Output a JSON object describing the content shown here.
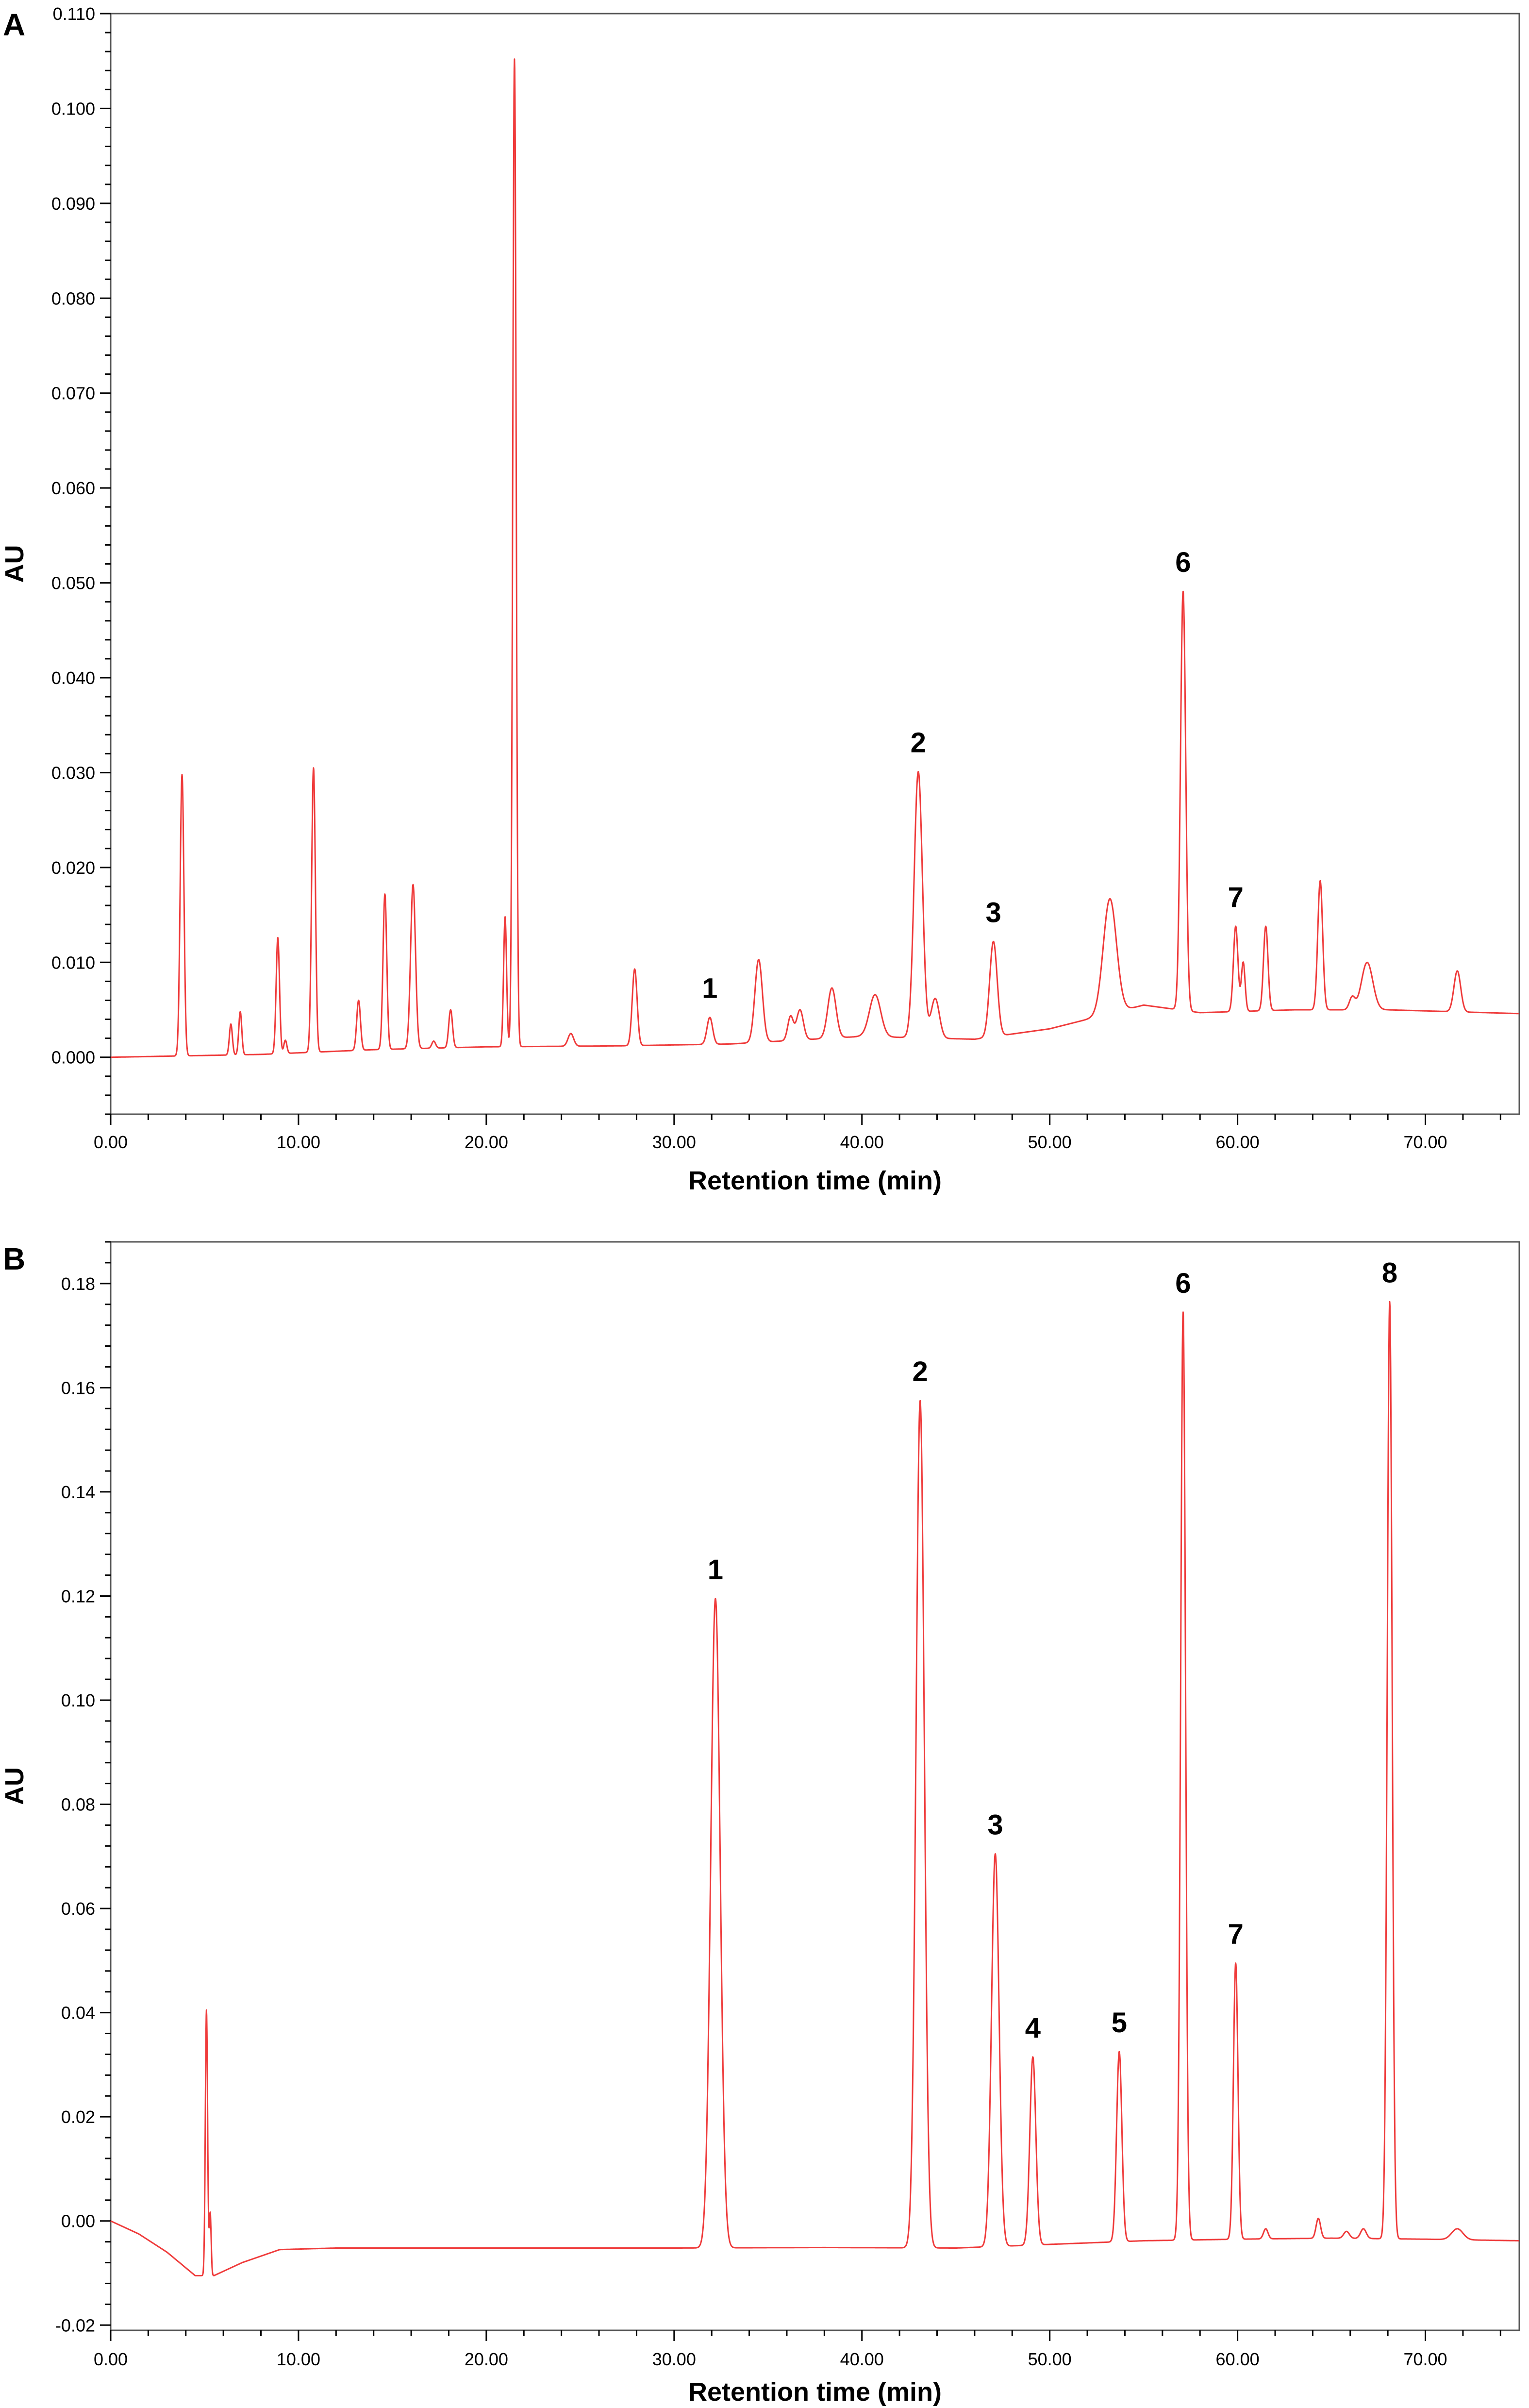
{
  "chart_data": [
    {
      "panel": "A",
      "type": "line",
      "xlabel": "Retention time (min)",
      "ylabel": "AU",
      "xlim": [
        0,
        75
      ],
      "ylim": [
        -0.006,
        0.11
      ],
      "xticks": [
        0,
        10,
        20,
        30,
        40,
        50,
        60,
        70
      ],
      "xtick_labels": [
        "0.00",
        "10.00",
        "20.00",
        "30.00",
        "40.00",
        "50.00",
        "60.00",
        "70.00"
      ],
      "yticks": [
        0,
        0.01,
        0.02,
        0.03,
        0.04,
        0.05,
        0.06,
        0.07,
        0.08,
        0.09,
        0.1,
        0.11
      ],
      "ytick_labels": [
        "0.000",
        "0.010",
        "0.020",
        "0.030",
        "0.040",
        "0.050",
        "0.060",
        "0.070",
        "0.080",
        "0.090",
        "0.100",
        "0.110"
      ],
      "grid": false,
      "line_color": "#ef3b3b",
      "baseline": [
        [
          0,
          0
        ],
        [
          8,
          0.0003
        ],
        [
          14,
          0.0008
        ],
        [
          20,
          0.0011
        ],
        [
          27,
          0.0012
        ],
        [
          33,
          0.0014
        ],
        [
          40,
          0.0022
        ],
        [
          46,
          0.0019
        ],
        [
          50,
          0.003
        ],
        [
          55,
          0.0055
        ],
        [
          58,
          0.0047
        ],
        [
          63,
          0.005
        ],
        [
          68,
          0.005
        ],
        [
          75,
          0.0046
        ]
      ],
      "peaks": [
        {
          "x": 3.8,
          "y": 0.0298,
          "w": 0.1
        },
        {
          "x": 6.4,
          "y": 0.0035,
          "w": 0.08
        },
        {
          "x": 6.9,
          "y": 0.0048,
          "w": 0.08
        },
        {
          "x": 8.9,
          "y": 0.0126,
          "w": 0.09
        },
        {
          "x": 9.3,
          "y": 0.0018,
          "w": 0.08
        },
        {
          "x": 10.8,
          "y": 0.0305,
          "w": 0.1
        },
        {
          "x": 13.2,
          "y": 0.006,
          "w": 0.1
        },
        {
          "x": 14.6,
          "y": 0.0172,
          "w": 0.1
        },
        {
          "x": 16.1,
          "y": 0.0182,
          "w": 0.13
        },
        {
          "x": 17.2,
          "y": 0.0017,
          "w": 0.1
        },
        {
          "x": 18.1,
          "y": 0.005,
          "w": 0.1
        },
        {
          "x": 21.0,
          "y": 0.0148,
          "w": 0.08
        },
        {
          "x": 21.5,
          "y": 0.1052,
          "w": 0.09
        },
        {
          "x": 24.5,
          "y": 0.0025,
          "w": 0.15
        },
        {
          "x": 27.9,
          "y": 0.0093,
          "w": 0.13
        },
        {
          "x": 31.9,
          "y": 0.0042,
          "w": 0.15
        },
        {
          "x": 34.5,
          "y": 0.0103,
          "w": 0.2
        },
        {
          "x": 36.2,
          "y": 0.0043,
          "w": 0.15
        },
        {
          "x": 36.7,
          "y": 0.005,
          "w": 0.18
        },
        {
          "x": 38.4,
          "y": 0.0073,
          "w": 0.22
        },
        {
          "x": 40.7,
          "y": 0.0066,
          "w": 0.3
        },
        {
          "x": 43.0,
          "y": 0.0301,
          "w": 0.22
        },
        {
          "x": 43.9,
          "y": 0.0062,
          "w": 0.22
        },
        {
          "x": 47.0,
          "y": 0.0122,
          "w": 0.2
        },
        {
          "x": 53.2,
          "y": 0.0167,
          "w": 0.35
        },
        {
          "x": 57.1,
          "y": 0.0491,
          "w": 0.14
        },
        {
          "x": 59.9,
          "y": 0.0138,
          "w": 0.12
        },
        {
          "x": 60.3,
          "y": 0.01,
          "w": 0.1
        },
        {
          "x": 61.5,
          "y": 0.0138,
          "w": 0.12
        },
        {
          "x": 64.4,
          "y": 0.0186,
          "w": 0.13
        },
        {
          "x": 66.1,
          "y": 0.0063,
          "w": 0.15
        },
        {
          "x": 66.9,
          "y": 0.01,
          "w": 0.3
        },
        {
          "x": 71.7,
          "y": 0.0091,
          "w": 0.18
        }
      ],
      "annotations": [
        {
          "text": "1",
          "x": 31.9,
          "y": 0.0042
        },
        {
          "text": "2",
          "x": 43.0,
          "y": 0.0301
        },
        {
          "text": "3",
          "x": 47.0,
          "y": 0.0122
        },
        {
          "text": "6",
          "x": 57.1,
          "y": 0.0491
        },
        {
          "text": "7",
          "x": 59.9,
          "y": 0.0138
        }
      ]
    },
    {
      "panel": "B",
      "type": "line",
      "xlabel": "Retention time (min)",
      "ylabel": "AU",
      "xlim": [
        0,
        75
      ],
      "ylim": [
        -0.021,
        0.188
      ],
      "xticks": [
        0,
        10,
        20,
        30,
        40,
        50,
        60,
        70
      ],
      "xtick_labels": [
        "0.00",
        "10.00",
        "20.00",
        "30.00",
        "40.00",
        "50.00",
        "60.00",
        "70.00"
      ],
      "yticks": [
        -0.02,
        0,
        0.02,
        0.04,
        0.06,
        0.08,
        0.1,
        0.12,
        0.14,
        0.16,
        0.18
      ],
      "ytick_labels": [
        "-0.02",
        "0.00",
        "0.02",
        "0.04",
        "0.06",
        "0.08",
        "0.10",
        "0.12",
        "0.14",
        "0.16",
        "0.18"
      ],
      "grid": false,
      "line_color": "#ef3b3b",
      "baseline": [
        [
          0,
          0
        ],
        [
          1.5,
          -0.0025
        ],
        [
          3.0,
          -0.006
        ],
        [
          4.5,
          -0.0105
        ],
        [
          5.5,
          -0.0105
        ],
        [
          7.0,
          -0.008
        ],
        [
          9.0,
          -0.0055
        ],
        [
          12,
          -0.0052
        ],
        [
          20,
          -0.0052
        ],
        [
          30,
          -0.0052
        ],
        [
          38,
          -0.0051
        ],
        [
          45,
          -0.0052
        ],
        [
          50,
          -0.0045
        ],
        [
          55,
          -0.0038
        ],
        [
          60,
          -0.0035
        ],
        [
          65,
          -0.0033
        ],
        [
          70,
          -0.0035
        ],
        [
          75,
          -0.0038
        ]
      ],
      "peaks": [
        {
          "x": 5.1,
          "y": 0.0405,
          "w": 0.06
        },
        {
          "x": 5.3,
          "y": 0.0015,
          "w": 0.05
        },
        {
          "x": 32.2,
          "y": 0.1195,
          "w": 0.25
        },
        {
          "x": 43.1,
          "y": 0.1575,
          "w": 0.22
        },
        {
          "x": 47.1,
          "y": 0.0705,
          "w": 0.2
        },
        {
          "x": 49.1,
          "y": 0.0315,
          "w": 0.16
        },
        {
          "x": 53.7,
          "y": 0.0325,
          "w": 0.14
        },
        {
          "x": 57.1,
          "y": 0.1745,
          "w": 0.13
        },
        {
          "x": 59.9,
          "y": 0.0495,
          "w": 0.12
        },
        {
          "x": 61.5,
          "y": -0.0015,
          "w": 0.12
        },
        {
          "x": 64.3,
          "y": 0.0005,
          "w": 0.12
        },
        {
          "x": 65.8,
          "y": -0.002,
          "w": 0.15
        },
        {
          "x": 66.7,
          "y": -0.0015,
          "w": 0.15
        },
        {
          "x": 68.1,
          "y": 0.1765,
          "w": 0.13
        },
        {
          "x": 71.7,
          "y": -0.0015,
          "w": 0.3
        }
      ],
      "annotations": [
        {
          "text": "1",
          "x": 32.2,
          "y": 0.1195
        },
        {
          "text": "2",
          "x": 43.1,
          "y": 0.1575
        },
        {
          "text": "3",
          "x": 47.1,
          "y": 0.0705
        },
        {
          "text": "4",
          "x": 49.1,
          "y": 0.0315
        },
        {
          "text": "5",
          "x": 53.7,
          "y": 0.0325
        },
        {
          "text": "6",
          "x": 57.1,
          "y": 0.1745
        },
        {
          "text": "7",
          "x": 59.9,
          "y": 0.0495
        },
        {
          "text": "8",
          "x": 68.1,
          "y": 0.1765
        }
      ]
    }
  ]
}
